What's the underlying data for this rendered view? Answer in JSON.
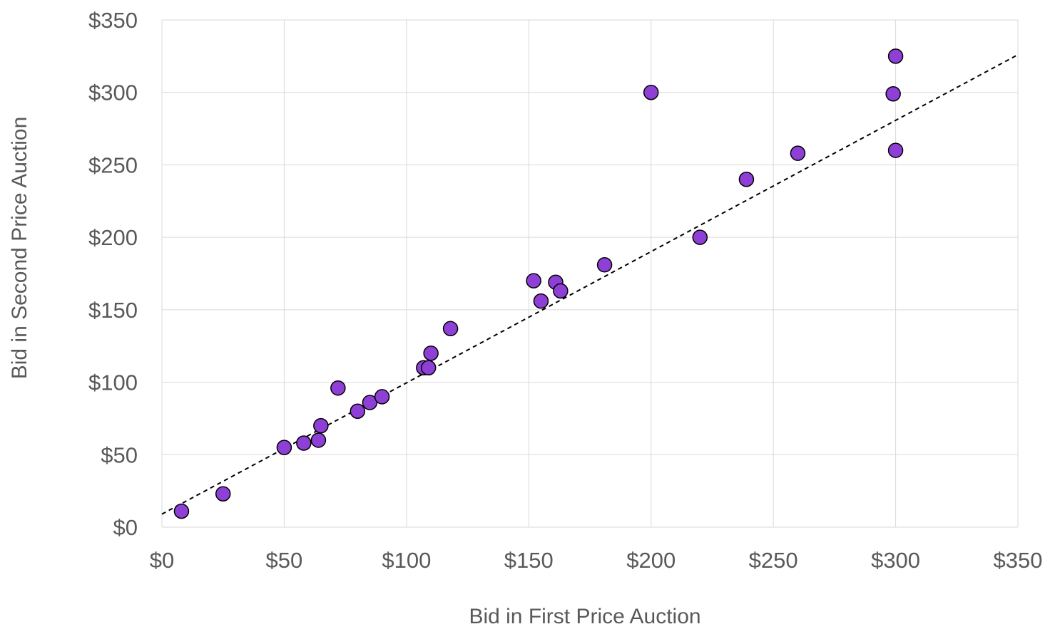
{
  "chart_data": {
    "type": "scatter",
    "title": "",
    "xlabel": "Bid in First Price Auction",
    "ylabel": "Bid in Second Price Auction",
    "xlim": [
      0,
      350
    ],
    "ylim": [
      0,
      350
    ],
    "x_ticks": [
      "$0",
      "$50",
      "$100",
      "$150",
      "$200",
      "$250",
      "$300",
      "$350"
    ],
    "y_ticks": [
      "$0",
      "$50",
      "$100",
      "$150",
      "$200",
      "$250",
      "$300",
      "$350"
    ],
    "grid": true,
    "legend": "none",
    "series": [
      {
        "color": "#8e3fd6",
        "points": [
          {
            "x": 8,
            "y": 11
          },
          {
            "x": 25,
            "y": 23
          },
          {
            "x": 50,
            "y": 55
          },
          {
            "x": 58,
            "y": 58
          },
          {
            "x": 64,
            "y": 60
          },
          {
            "x": 65,
            "y": 70
          },
          {
            "x": 72,
            "y": 96
          },
          {
            "x": 80,
            "y": 80
          },
          {
            "x": 85,
            "y": 86
          },
          {
            "x": 90,
            "y": 90
          },
          {
            "x": 107,
            "y": 110
          },
          {
            "x": 109,
            "y": 110
          },
          {
            "x": 110,
            "y": 120
          },
          {
            "x": 118,
            "y": 137
          },
          {
            "x": 152,
            "y": 170
          },
          {
            "x": 155,
            "y": 156
          },
          {
            "x": 161,
            "y": 169
          },
          {
            "x": 163,
            "y": 163
          },
          {
            "x": 181,
            "y": 181
          },
          {
            "x": 200,
            "y": 300
          },
          {
            "x": 220,
            "y": 200
          },
          {
            "x": 239,
            "y": 240
          },
          {
            "x": 260,
            "y": 258
          },
          {
            "x": 299,
            "y": 299
          },
          {
            "x": 300,
            "y": 325
          },
          {
            "x": 300,
            "y": 260
          }
        ]
      }
    ],
    "trendline": {
      "style": "dashed",
      "color": "#000000",
      "x": [
        0,
        350
      ],
      "y": [
        9,
        326
      ]
    }
  }
}
